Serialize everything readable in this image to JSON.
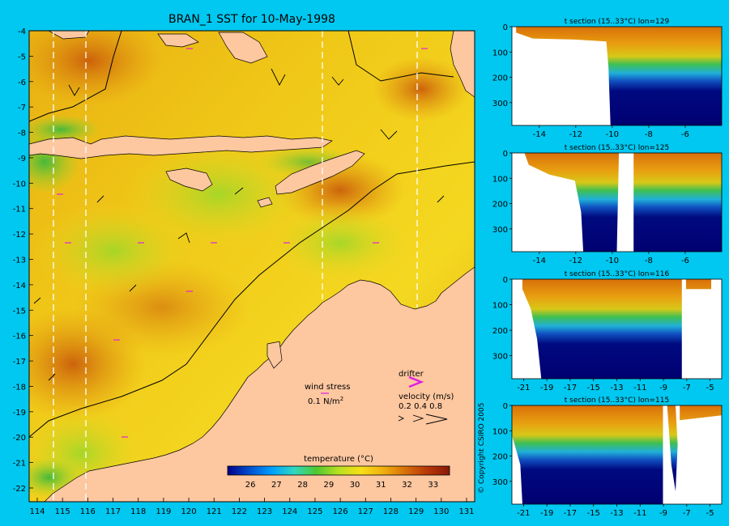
{
  "main": {
    "title": "BRAN_1 SST for 10-May-1998",
    "x_ticks": [
      "114",
      "115",
      "116",
      "117",
      "118",
      "119",
      "120",
      "121",
      "122",
      "123",
      "124",
      "125",
      "126",
      "127",
      "128",
      "129",
      "130",
      "131"
    ],
    "y_ticks": [
      "-4",
      "-5",
      "-6",
      "-7",
      "-8",
      "-9",
      "-10",
      "-11",
      "-12",
      "-13",
      "-14",
      "-15",
      "-16",
      "-17",
      "-18",
      "-19",
      "-20",
      "-21",
      "-22"
    ],
    "colors": {
      "ocean_warm": "#e2a810",
      "ocean_mid": "#f2d21c",
      "land": "#fdc7a0",
      "cool": "#5cc83c",
      "contour": "#000000",
      "section_line": "#ffffff"
    },
    "colorbar": {
      "label": "temperature (°C)",
      "ticks": [
        "26",
        "27",
        "28",
        "29",
        "30",
        "31",
        "32",
        "33"
      ],
      "colors": [
        "#000088",
        "#0050d0",
        "#00a0ff",
        "#30d8c0",
        "#50c830",
        "#b8e020",
        "#f8e018",
        "#f0b010",
        "#d87008",
        "#b83808",
        "#881808"
      ]
    },
    "legend": {
      "wind_label": "wind stress",
      "wind_scale": "0.1 N/m",
      "wind_scale_sup": "2",
      "drifter_label": "drifter",
      "velocity_label": "velocity (m/s)",
      "velocity_values": "0.2 0.4 0.8",
      "arrow_color": "#e020e0"
    }
  },
  "chart_data": [
    {
      "type": "heatmap",
      "title": "BRAN_1 SST for 10-May-1998",
      "x_range": [
        113.5,
        131.5
      ],
      "y_range": [
        -22.5,
        -4
      ],
      "value_range": [
        25,
        34
      ],
      "unit": "°C",
      "section_longitudes": [
        114.5,
        115.8,
        125.4,
        129.2
      ]
    },
    {
      "type": "heatmap",
      "title": "t section (15..33°C) lon=129",
      "x_ticks": [
        "-14",
        "-12",
        "-10",
        "-8",
        "-6"
      ],
      "y_ticks": [
        "0",
        "100",
        "200",
        "300"
      ],
      "x_range": [
        -15.5,
        -4
      ],
      "y_range": [
        0,
        390
      ]
    },
    {
      "type": "heatmap",
      "title": "t section (15..33°C) lon=125",
      "x_ticks": [
        "-14",
        "-12",
        "-10",
        "-8",
        "-6"
      ],
      "y_ticks": [
        "0",
        "100",
        "200",
        "300"
      ],
      "x_range": [
        -15.5,
        -4
      ],
      "y_range": [
        0,
        390
      ]
    },
    {
      "type": "heatmap",
      "title": "t section (15..33°C) lon=116",
      "x_ticks": [
        "-21",
        "-19",
        "-17",
        "-15",
        "-13",
        "-11",
        "-9",
        "-7",
        "-5"
      ],
      "y_ticks": [
        "0",
        "100",
        "200",
        "300"
      ],
      "x_range": [
        -22,
        -4
      ],
      "y_range": [
        0,
        390
      ]
    },
    {
      "type": "heatmap",
      "title": "t section (15..33°C) lon=115",
      "x_ticks": [
        "-21",
        "-19",
        "-17",
        "-15",
        "-13",
        "-11",
        "-9",
        "-7",
        "-5"
      ],
      "y_ticks": [
        "0",
        "100",
        "200",
        "300"
      ],
      "x_range": [
        -22,
        -4
      ],
      "y_range": [
        0,
        390
      ]
    }
  ],
  "copyright": "© Copyright CSIRO 2005"
}
